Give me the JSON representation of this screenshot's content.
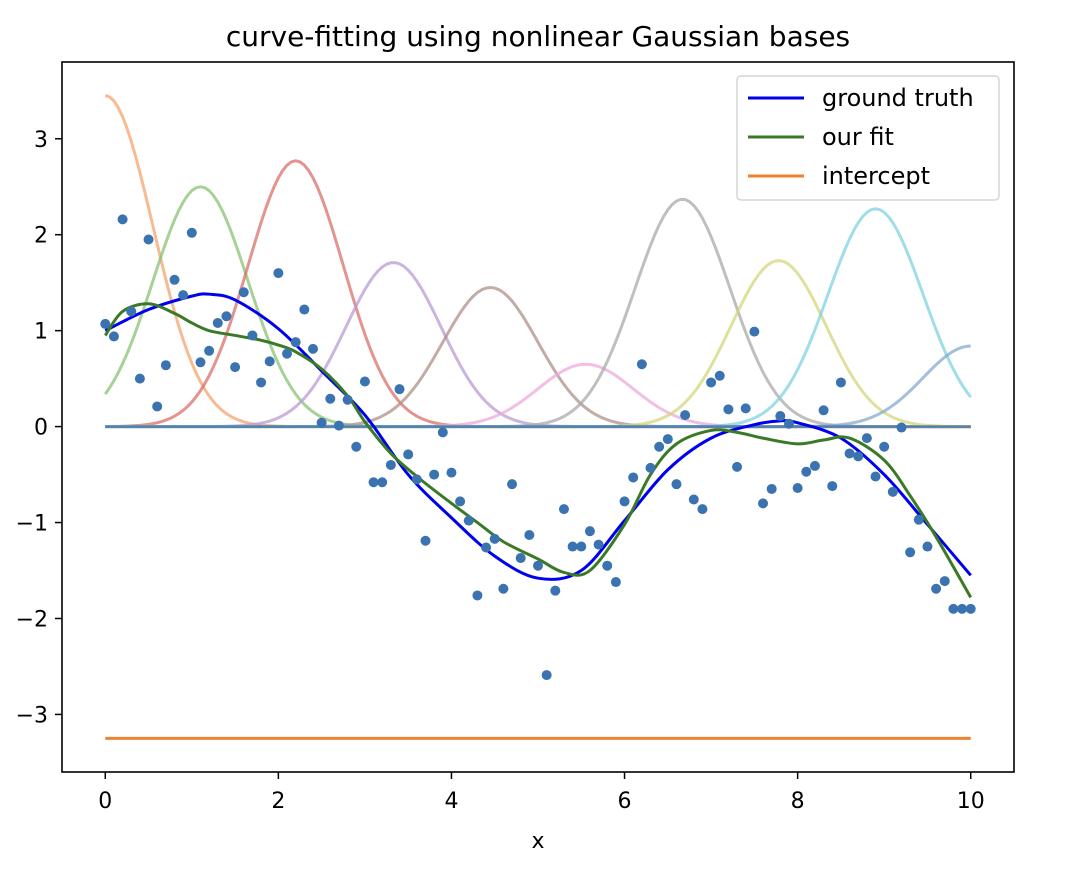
{
  "chart_data": {
    "type": "line",
    "title": "curve-fitting using nonlinear Gaussian bases",
    "xlabel": "x",
    "ylabel": "",
    "xlim": [
      -0.5,
      10.5
    ],
    "ylim": [
      -3.6,
      3.8
    ],
    "x_ticks": [
      0,
      2,
      4,
      6,
      8,
      10
    ],
    "y_ticks": [
      -3,
      -2,
      -1,
      0,
      1,
      2,
      3
    ],
    "x_tick_labels": [
      "0",
      "2",
      "4",
      "6",
      "8",
      "10"
    ],
    "y_tick_labels": [
      "−3",
      "−2",
      "−1",
      "0",
      "1",
      "2",
      "3"
    ],
    "grid": false,
    "legend_position": "top-right",
    "legend": [
      {
        "label": "ground truth",
        "color": "#0000ee"
      },
      {
        "label": "our fit",
        "color": "#3a7a27"
      },
      {
        "label": "intercept",
        "color": "#ee8232"
      }
    ],
    "ground_truth": {
      "name": "ground truth",
      "color": "#0000ee",
      "x": [
        0,
        0.5,
        1.0,
        1.2,
        1.5,
        2.0,
        2.5,
        3.0,
        3.5,
        4.0,
        4.5,
        5.0,
        5.5,
        6.0,
        6.5,
        7.0,
        7.5,
        7.8,
        8.0,
        8.5,
        9.0,
        9.5,
        10.0
      ],
      "y": [
        1.0,
        1.22,
        1.36,
        1.38,
        1.32,
        1.02,
        0.58,
        0.12,
        -0.5,
        -0.95,
        -1.35,
        -1.58,
        -1.5,
        -0.98,
        -0.45,
        -0.12,
        0.02,
        0.06,
        0.04,
        -0.12,
        -0.5,
        -1.02,
        -1.55
      ]
    },
    "our_fit": {
      "name": "our fit",
      "color": "#3a7a27",
      "x": [
        0,
        0.2,
        0.5,
        0.8,
        1.0,
        1.2,
        1.5,
        1.8,
        2.0,
        2.2,
        2.5,
        2.8,
        3.0,
        3.3,
        3.6,
        4.0,
        4.3,
        4.6,
        5.0,
        5.3,
        5.6,
        6.0,
        6.3,
        6.6,
        7.0,
        7.3,
        7.6,
        8.0,
        8.3,
        8.6,
        9.0,
        9.3,
        9.6,
        10.0
      ],
      "y": [
        0.95,
        1.2,
        1.28,
        1.18,
        1.08,
        1.0,
        0.95,
        0.9,
        0.85,
        0.78,
        0.6,
        0.32,
        0.05,
        -0.28,
        -0.52,
        -0.8,
        -1.0,
        -1.2,
        -1.38,
        -1.52,
        -1.5,
        -1.02,
        -0.5,
        -0.18,
        -0.04,
        -0.06,
        -0.12,
        -0.18,
        -0.14,
        -0.12,
        -0.35,
        -0.72,
        -1.15,
        -1.78
      ]
    },
    "intercept": {
      "name": "intercept",
      "color": "#ee8232",
      "y": -3.25
    },
    "zero_line": {
      "y": 0,
      "color": "#4f81aa"
    },
    "bases": [
      {
        "center": 0.0,
        "amp": 3.45,
        "width": 0.55,
        "color": "#f5a46c"
      },
      {
        "center": 1.1,
        "amp": 2.5,
        "width": 0.55,
        "color": "#88c274"
      },
      {
        "center": 2.2,
        "amp": 2.77,
        "width": 0.55,
        "color": "#d9706a"
      },
      {
        "center": 3.33,
        "amp": 1.71,
        "width": 0.55,
        "color": "#b99bd6"
      },
      {
        "center": 4.45,
        "amp": 1.45,
        "width": 0.55,
        "color": "#b09088"
      },
      {
        "center": 5.55,
        "amp": 0.65,
        "width": 0.55,
        "color": "#eeaadb"
      },
      {
        "center": 6.67,
        "amp": 2.37,
        "width": 0.55,
        "color": "#aaaaaa"
      },
      {
        "center": 7.78,
        "amp": 1.73,
        "width": 0.55,
        "color": "#d6d67e"
      },
      {
        "center": 8.9,
        "amp": 2.27,
        "width": 0.55,
        "color": "#7fd3e0"
      },
      {
        "center": 10.0,
        "amp": 0.84,
        "width": 0.55,
        "color": "#86a9cf"
      }
    ],
    "points": {
      "color": "#3a73b0",
      "x": [
        0.0,
        0.1,
        0.2,
        0.3,
        0.4,
        0.5,
        0.6,
        0.7,
        0.8,
        0.9,
        1.0,
        1.1,
        1.2,
        1.3,
        1.4,
        1.5,
        1.6,
        1.7,
        1.8,
        1.9,
        2.0,
        2.1,
        2.2,
        2.3,
        2.4,
        2.5,
        2.6,
        2.7,
        2.8,
        2.9,
        3.0,
        3.1,
        3.2,
        3.3,
        3.4,
        3.5,
        3.6,
        3.7,
        3.8,
        3.9,
        4.0,
        4.1,
        4.2,
        4.3,
        4.4,
        4.5,
        4.6,
        4.7,
        4.8,
        4.9,
        5.0,
        5.1,
        5.2,
        5.3,
        5.4,
        5.5,
        5.6,
        5.7,
        5.8,
        5.9,
        6.0,
        6.1,
        6.2,
        6.3,
        6.4,
        6.5,
        6.6,
        6.7,
        6.8,
        6.9,
        7.0,
        7.1,
        7.2,
        7.3,
        7.4,
        7.5,
        7.6,
        7.7,
        7.8,
        7.9,
        8.0,
        8.1,
        8.2,
        8.3,
        8.4,
        8.5,
        8.6,
        8.7,
        8.8,
        8.9,
        9.0,
        9.1,
        9.2,
        9.3,
        9.4,
        9.5,
        9.6,
        9.7,
        9.8,
        9.9,
        10.0
      ],
      "y": [
        1.07,
        0.94,
        2.16,
        1.2,
        0.5,
        1.95,
        0.21,
        0.64,
        1.53,
        1.37,
        2.02,
        0.67,
        0.79,
        1.08,
        1.15,
        0.62,
        1.4,
        0.95,
        0.46,
        0.68,
        1.6,
        0.76,
        0.88,
        1.22,
        0.81,
        0.04,
        0.29,
        0.01,
        0.28,
        -0.21,
        0.47,
        -0.58,
        -0.58,
        -0.4,
        0.39,
        -0.29,
        -0.55,
        -1.19,
        -0.5,
        -0.06,
        -0.48,
        -0.78,
        -0.98,
        -1.76,
        -1.26,
        -1.17,
        -1.69,
        -0.6,
        -1.37,
        -1.13,
        -1.45,
        -2.59,
        -1.71,
        -0.86,
        -1.25,
        -1.25,
        -1.09,
        -1.23,
        -1.45,
        -1.62,
        -0.78,
        -0.53,
        0.65,
        -0.43,
        -0.21,
        -0.13,
        -0.6,
        0.12,
        -0.76,
        -0.86,
        0.46,
        0.53,
        0.18,
        -0.42,
        0.19,
        0.99,
        -0.8,
        -0.65,
        0.11,
        0.03,
        -0.64,
        -0.47,
        -0.41,
        0.17,
        -0.62,
        0.46,
        -0.28,
        -0.31,
        -0.12,
        -0.52,
        -0.21,
        -0.68,
        -0.01,
        -1.31,
        -0.97,
        -1.25,
        -1.69,
        -1.61,
        -1.9,
        -1.9,
        -1.9
      ]
    }
  }
}
